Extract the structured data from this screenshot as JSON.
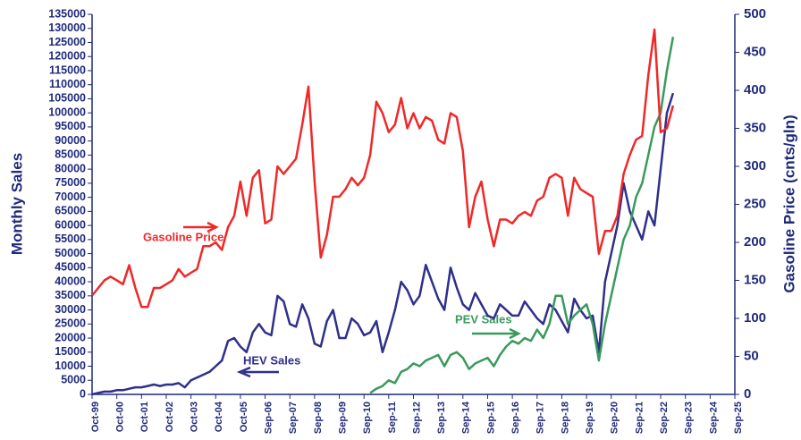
{
  "chart_data": {
    "type": "line",
    "ylabel": "Monthly Sales",
    "y2label": "Gasoline Price (cnts/gln)",
    "annotations": [
      "Gasoline Price",
      "HEV Sales",
      "PEV Sales"
    ],
    "xticks": [
      "Oct-99",
      "Oct-00",
      "Oct-01",
      "Oct-02",
      "Oct-03",
      "Oct-04",
      "Oct-05",
      "Sep-06",
      "Sep-07",
      "Sep-08",
      "Sep-09",
      "Sep-10",
      "Sep-11",
      "Sep-12",
      "Sep-13",
      "Sep-14",
      "Sep-15",
      "Sep-16",
      "Sep-17",
      "Sep-18",
      "Sep-19",
      "Sep-20",
      "Sep-21",
      "Sep-22",
      "Sep-23",
      "Sep-24",
      "Sep-25"
    ],
    "x": [
      "Oct-99",
      "Jan-00",
      "Apr-00",
      "Jul-00",
      "Oct-00",
      "Jan-01",
      "Apr-01",
      "Jul-01",
      "Oct-01",
      "Jan-02",
      "Apr-02",
      "Jul-02",
      "Oct-02",
      "Jan-03",
      "Apr-03",
      "Jul-03",
      "Oct-03",
      "Jan-04",
      "Apr-04",
      "Jul-04",
      "Oct-04",
      "Jan-05",
      "Apr-05",
      "Jul-05",
      "Oct-05",
      "Jan-06",
      "Apr-06",
      "Jul-06",
      "Oct-06",
      "Jan-07",
      "Apr-07",
      "Jul-07",
      "Oct-07",
      "Jan-08",
      "Apr-08",
      "Jul-08",
      "Oct-08",
      "Jan-09",
      "Apr-09",
      "Jul-09",
      "Oct-09",
      "Jan-10",
      "Apr-10",
      "Jul-10",
      "Oct-10",
      "Jan-11",
      "Apr-11",
      "Jul-11",
      "Oct-11",
      "Jan-12",
      "Apr-12",
      "Jul-12",
      "Oct-12",
      "Jan-13",
      "Apr-13",
      "Jul-13",
      "Oct-13",
      "Jan-14",
      "Apr-14",
      "Jul-14",
      "Oct-14",
      "Jan-15",
      "Apr-15",
      "Jul-15",
      "Oct-15",
      "Jan-16",
      "Apr-16",
      "Jul-16",
      "Oct-16",
      "Jan-17",
      "Apr-17",
      "Jul-17",
      "Oct-17",
      "Jan-18",
      "Apr-18",
      "Jul-18",
      "Oct-18",
      "Jan-19",
      "Apr-19",
      "Jul-19",
      "Oct-19",
      "Jan-20",
      "Apr-20",
      "Jul-20",
      "Oct-20",
      "Jan-21",
      "Apr-21",
      "Jul-21",
      "Oct-21",
      "Jan-22",
      "Apr-22",
      "Jul-22",
      "Oct-22",
      "Jan-23",
      "Apr-23"
    ],
    "series": [
      {
        "name": "Gasoline Price",
        "color": "#f02828",
        "axis": "y2",
        "values": [
          130,
          140,
          150,
          155,
          150,
          145,
          170,
          140,
          115,
          115,
          140,
          140,
          145,
          150,
          165,
          155,
          160,
          165,
          195,
          195,
          200,
          190,
          220,
          235,
          280,
          235,
          285,
          295,
          225,
          230,
          300,
          290,
          300,
          310,
          355,
          405,
          280,
          180,
          210,
          260,
          260,
          270,
          285,
          275,
          285,
          315,
          385,
          370,
          345,
          355,
          390,
          350,
          370,
          350,
          365,
          360,
          335,
          330,
          370,
          365,
          320,
          220,
          260,
          280,
          230,
          195,
          230,
          230,
          225,
          235,
          240,
          235,
          255,
          260,
          285,
          290,
          285,
          235,
          285,
          270,
          265,
          260,
          185,
          215,
          215,
          235,
          290,
          315,
          335,
          340,
          420,
          480,
          345,
          350,
          380
        ]
      },
      {
        "name": "HEV Sales",
        "color": "#2f2f8c",
        "values": [
          0,
          500,
          1000,
          1000,
          1500,
          1500,
          2000,
          2500,
          2500,
          3000,
          3500,
          3000,
          3500,
          3500,
          4000,
          2500,
          5000,
          6000,
          7000,
          8000,
          10000,
          12000,
          19000,
          20000,
          17000,
          15000,
          22000,
          25000,
          22000,
          21000,
          35000,
          33000,
          25000,
          24000,
          32000,
          27000,
          18000,
          17000,
          26000,
          30000,
          20000,
          20000,
          27000,
          25000,
          21000,
          22000,
          26000,
          15000,
          22000,
          30000,
          40000,
          37000,
          32000,
          35000,
          46000,
          40000,
          34000,
          30000,
          45000,
          38000,
          32000,
          30000,
          36000,
          32000,
          28000,
          27000,
          32000,
          30000,
          28000,
          28000,
          33000,
          30000,
          27000,
          25000,
          32000,
          30000,
          26000,
          22000,
          34000,
          30000,
          27000,
          28000,
          15000,
          40000,
          50000,
          60000,
          75000,
          65000,
          60000,
          55000,
          65000,
          60000,
          80000,
          100000,
          107000
        ]
      },
      {
        "name": "PEV Sales",
        "color": "#3a9a5c",
        "values": [
          null,
          null,
          null,
          null,
          null,
          null,
          null,
          null,
          null,
          null,
          null,
          null,
          null,
          null,
          null,
          null,
          null,
          null,
          null,
          null,
          null,
          null,
          null,
          null,
          null,
          null,
          null,
          null,
          null,
          null,
          null,
          null,
          null,
          null,
          null,
          null,
          null,
          null,
          null,
          null,
          null,
          null,
          null,
          null,
          null,
          500,
          2000,
          3000,
          5000,
          4000,
          8000,
          9000,
          11000,
          10000,
          12000,
          13000,
          14000,
          10000,
          14000,
          15000,
          13000,
          9000,
          11000,
          12000,
          13000,
          10000,
          14000,
          17000,
          19000,
          18000,
          20000,
          19000,
          23000,
          20000,
          25000,
          35000,
          35000,
          25000,
          28000,
          30000,
          32000,
          25000,
          12000,
          25000,
          35000,
          45000,
          55000,
          60000,
          70000,
          75000,
          85000,
          95000,
          100000,
          115000,
          127000
        ]
      }
    ],
    "ylim": [
      0,
      135000
    ],
    "yticks": [
      0,
      5000,
      10000,
      15000,
      20000,
      25000,
      30000,
      35000,
      40000,
      45000,
      50000,
      55000,
      60000,
      65000,
      70000,
      75000,
      80000,
      85000,
      90000,
      95000,
      100000,
      105000,
      110000,
      115000,
      120000,
      125000,
      130000,
      135000
    ],
    "y2lim": [
      0,
      500
    ],
    "y2ticks": [
      0,
      50,
      100,
      150,
      200,
      250,
      300,
      350,
      400,
      450,
      500
    ]
  }
}
